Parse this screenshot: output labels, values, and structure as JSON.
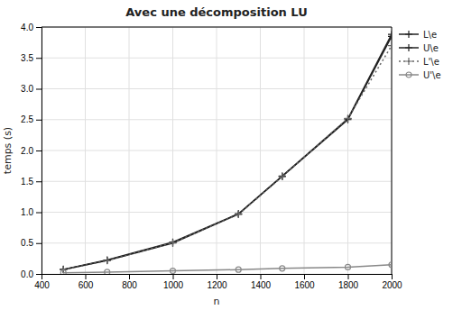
{
  "chart_data": {
    "type": "line",
    "title": "Avec une décomposition LU",
    "xlabel": "n",
    "ylabel": "temps (s)",
    "x": [
      500,
      700,
      1000,
      1300,
      1500,
      1800,
      2000
    ],
    "series": [
      {
        "name": "L\\e",
        "color": "#222222",
        "marker": "plus",
        "line_style": "solid",
        "values": [
          0.07,
          0.22,
          0.5,
          0.97,
          1.58,
          2.5,
          3.85
        ]
      },
      {
        "name": "U\\e",
        "color": "#222222",
        "marker": "plus",
        "line_style": "solid",
        "values": [
          0.075,
          0.225,
          0.515,
          0.975,
          1.585,
          2.515,
          3.88
        ]
      },
      {
        "name": "L'\\e",
        "color": "#666666",
        "marker": "plus",
        "line_style": "dotted",
        "values": [
          0.068,
          0.215,
          0.505,
          0.965,
          1.575,
          2.52,
          3.7
        ]
      },
      {
        "name": "U'\\e",
        "color": "#888888",
        "marker": "circle",
        "line_style": "solid",
        "values": [
          0.02,
          0.03,
          0.05,
          0.07,
          0.09,
          0.11,
          0.15
        ]
      }
    ],
    "xlim": [
      400,
      2000
    ],
    "ylim": [
      0,
      4
    ],
    "xticks": [
      400,
      600,
      800,
      1000,
      1200,
      1400,
      1600,
      1800,
      2000
    ],
    "yticks": [
      {
        "value": 0,
        "label": "0.0"
      },
      0.5,
      {
        "value": 1,
        "label": "1.0"
      },
      1.5,
      {
        "value": 2,
        "label": "2.0"
      },
      2.5,
      {
        "value": 3,
        "label": "3.0"
      },
      3.5,
      {
        "value": 4,
        "label": "4.0"
      }
    ],
    "grid": true,
    "legend": "upper right"
  }
}
